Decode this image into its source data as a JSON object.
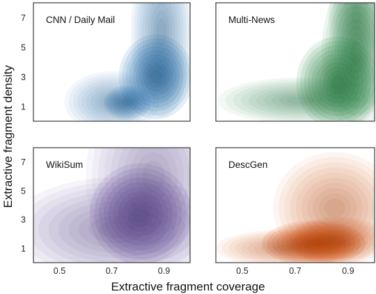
{
  "chart_data": {
    "type": "kde-density",
    "xlabel": "Extractive fragment coverage",
    "ylabel": "Extractive fragment density",
    "xticks": [
      0.5,
      0.7,
      0.9
    ],
    "yticks": [
      1,
      3,
      5,
      7
    ],
    "xlim": [
      0.4,
      1.0
    ],
    "ylim": [
      0,
      8
    ],
    "panels": [
      {
        "title": "CNN / Daily Mail",
        "color": "#2171b5",
        "peaks": [
          {
            "x": 0.87,
            "y": 3.0,
            "sx": 0.055,
            "sy": 1.1,
            "w": 1.0
          },
          {
            "x": 0.76,
            "y": 1.25,
            "sx": 0.035,
            "sy": 0.45,
            "w": 0.55
          },
          {
            "x": 0.89,
            "y": 6.0,
            "sx": 0.045,
            "sy": 2.2,
            "w": 0.25
          },
          {
            "x": 0.7,
            "y": 1.3,
            "sx": 0.07,
            "sy": 0.8,
            "w": 0.12
          }
        ]
      },
      {
        "title": "Multi-News",
        "color": "#238b45",
        "peaks": [
          {
            "x": 0.86,
            "y": 2.6,
            "sx": 0.06,
            "sy": 1.2,
            "w": 1.0
          },
          {
            "x": 0.93,
            "y": 4.6,
            "sx": 0.05,
            "sy": 2.0,
            "w": 0.5
          },
          {
            "x": 0.72,
            "y": 1.4,
            "sx": 0.12,
            "sy": 0.6,
            "w": 0.2
          },
          {
            "x": 0.93,
            "y": 7.2,
            "sx": 0.04,
            "sy": 1.5,
            "w": 0.18
          }
        ]
      },
      {
        "title": "WikiSum",
        "color": "#6a51a3",
        "peaks": [
          {
            "x": 0.81,
            "y": 3.4,
            "sx": 0.075,
            "sy": 1.35,
            "w": 1.0
          },
          {
            "x": 0.72,
            "y": 2.3,
            "sx": 0.16,
            "sy": 1.4,
            "w": 0.22
          },
          {
            "x": 0.86,
            "y": 6.0,
            "sx": 0.1,
            "sy": 2.5,
            "w": 0.1
          }
        ]
      },
      {
        "title": "DescGen",
        "color": "#d94801",
        "peaks": [
          {
            "x": 0.77,
            "y": 1.35,
            "sx": 0.075,
            "sy": 0.6,
            "w": 1.0
          },
          {
            "x": 0.86,
            "y": 1.5,
            "sx": 0.07,
            "sy": 0.65,
            "w": 0.45
          },
          {
            "x": 0.85,
            "y": 3.8,
            "sx": 0.09,
            "sy": 1.5,
            "w": 0.12
          },
          {
            "x": 0.66,
            "y": 1.0,
            "sx": 0.1,
            "sy": 0.5,
            "w": 0.12
          }
        ]
      }
    ]
  }
}
